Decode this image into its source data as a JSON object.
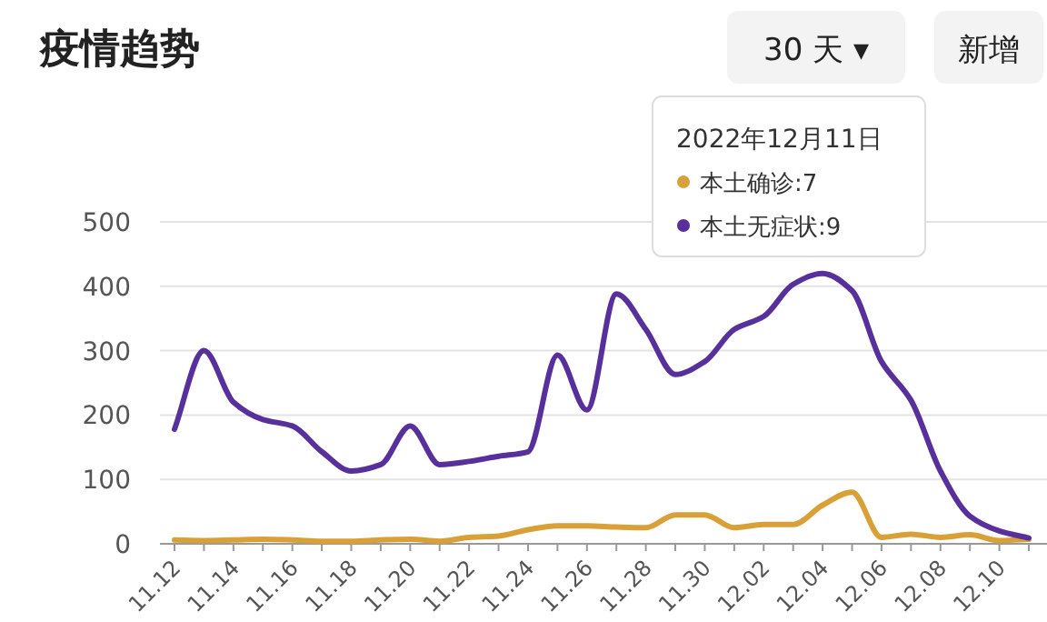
{
  "chart_data": {
    "type": "line",
    "title": "疫情趋势",
    "categories": [
      "11.12",
      null,
      "11.14",
      null,
      "11.16",
      null,
      "11.18",
      null,
      "11.20",
      null,
      "11.22",
      null,
      "11.24",
      null,
      "11.26",
      null,
      "11.28",
      null,
      "11.30",
      null,
      "12.02",
      null,
      "12.04",
      null,
      "12.06",
      null,
      "12.08",
      null,
      "12.10",
      null
    ],
    "series": [
      {
        "color": "#d9a038",
        "values": [
          6,
          5,
          6,
          7,
          6,
          4,
          4,
          6,
          7,
          4,
          10,
          12,
          22,
          28,
          28,
          26,
          25,
          45,
          45,
          25,
          30,
          30,
          60,
          80,
          10,
          15,
          10,
          14,
          5,
          7
        ]
      },
      {
        "color": "#58309c",
        "values": [
          178,
          300,
          220,
          193,
          183,
          143,
          113,
          123,
          183,
          123,
          128,
          136,
          143,
          293,
          208,
          388,
          333,
          263,
          283,
          333,
          353,
          403,
          420,
          393,
          283,
          223,
          113,
          43,
          20,
          9
        ]
      }
    ],
    "ylim": [
      0,
      500
    ],
    "yticks": [
      0,
      100,
      200,
      300,
      400,
      500
    ],
    "grid": "y",
    "annotations": [
      "30 天 ▾",
      "新增",
      "2022年12月11日",
      "本土确诊:7",
      "本土无症状:9"
    ]
  }
}
